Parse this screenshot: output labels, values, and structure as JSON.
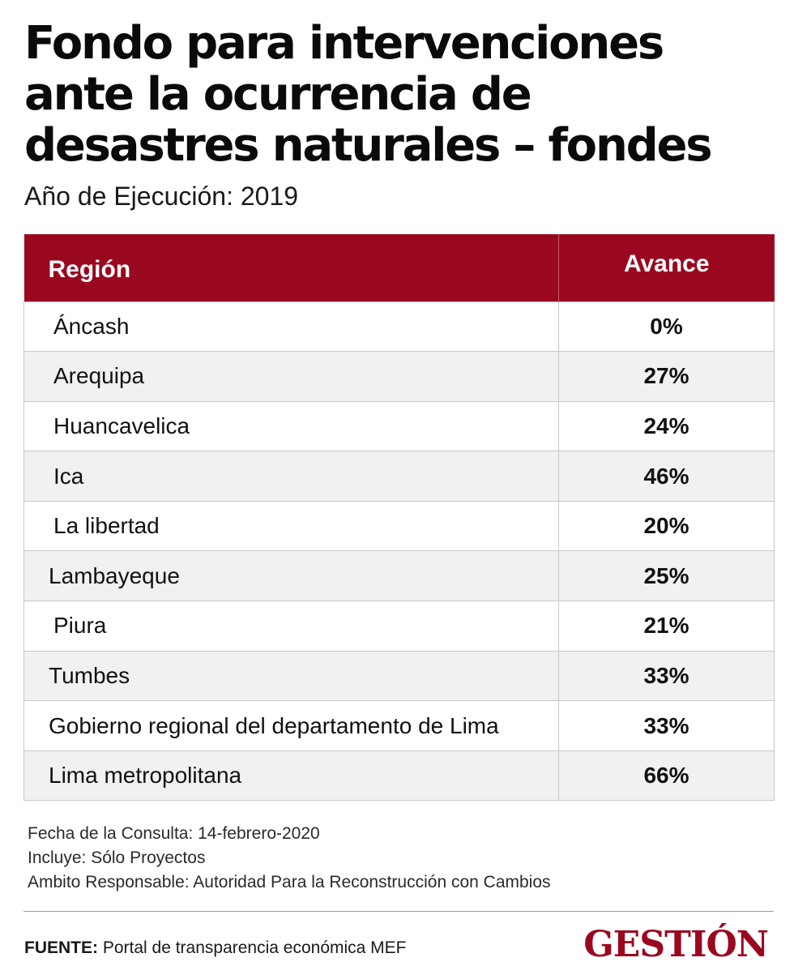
{
  "header": {
    "title": "Fondo para intervenciones ante la ocurrencia de desastres naturales – fondes",
    "subtitle": "Año de Ejecución: 2019"
  },
  "table": {
    "columns": [
      "Región",
      "Avance"
    ],
    "rows": [
      {
        "region": "Áncash",
        "avance": "0%"
      },
      {
        "region": "Arequipa",
        "avance": "27%"
      },
      {
        "region": "Huancavelica",
        "avance": "24%"
      },
      {
        "region": "Ica",
        "avance": "46%"
      },
      {
        "region": "La libertad",
        "avance": "20%"
      },
      {
        "region": "Lambayeque",
        "avance": "25%"
      },
      {
        "region": "Piura",
        "avance": "21%"
      },
      {
        "region": "Tumbes",
        "avance": "33%"
      },
      {
        "region": "Gobierno regional del departamento de Lima",
        "avance": "33%"
      },
      {
        "region": "Lima metropolitana",
        "avance": "66%"
      }
    ]
  },
  "notes": [
    "Fecha de la Consulta: 14-febrero-2020",
    "Incluye: Sólo Proyectos",
    "Ambito Responsable: Autoridad Para la Reconstrucción con Cambios"
  ],
  "footer": {
    "source_label": "FUENTE:",
    "source_text": " Portal de transparencia económica MEF",
    "logo_text": "GESTIÓN"
  },
  "colors": {
    "accent": "#9a0820",
    "row_alt": "#f1f1f1",
    "border": "#c8c8c8"
  }
}
